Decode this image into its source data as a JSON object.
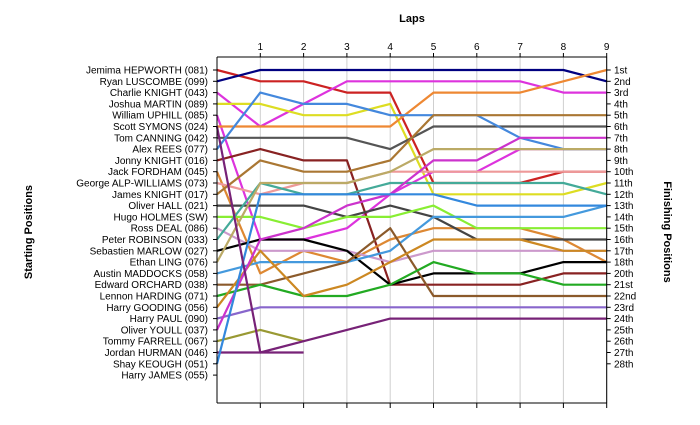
{
  "chart_data": {
    "type": "line",
    "title": "",
    "xlabel": "Laps",
    "ylabel_left": "Starting Positions",
    "ylabel_right": "Finishing Positions",
    "x": [
      0,
      1,
      2,
      3,
      4,
      5,
      6,
      7,
      8,
      9
    ],
    "x_tick_labels": [
      "1",
      "2",
      "3",
      "4",
      "5",
      "6",
      "7",
      "8",
      "9"
    ],
    "ylim": [
      1,
      28
    ],
    "y_inverted": true,
    "grid": true,
    "left_labels": [
      "Jemima HEPWORTH (081)",
      "Ryan LUSCOMBE (099)",
      "Charlie KNIGHT (043)",
      "Joshua MARTIN (089)",
      "William UPHILL (085)",
      "Scott SYMONS (024)",
      "Tom CANNING (042)",
      "Alex REES (077)",
      "Jonny KNIGHT (016)",
      "Jack FORDHAM (045)",
      "George ALP-WILLIAMS (073)",
      "James KNIGHT (017)",
      "Oliver HALL (021)",
      "Hugo HOLMES (SW)",
      "Ross DEAL (086)",
      "Peter ROBINSON (033)",
      "Sebastien MARLOW (027)",
      "Ethan LING (076)",
      "Austin MADDOCKS (058)",
      "Edward ORCHARD (038)",
      "Lennon HARDING (071)",
      "Harry GOODING (056)",
      "Harry PAUL (090)",
      "Oliver YOULL (037)",
      "Tommy FARRELL (067)",
      "Jordan HURMAN (046)",
      "Shay KEOUGH (051)",
      "Harry JAMES (055)"
    ],
    "right_labels": [
      "1st",
      "2nd",
      "3rd",
      "4th",
      "5th",
      "6th",
      "7th",
      "8th",
      "9th",
      "10th",
      "11th",
      "12th",
      "13th",
      "14th",
      "15th",
      "16th",
      "17th",
      "18th",
      "20th",
      "21st",
      "22nd",
      "23rd",
      "24th",
      "25th",
      "26th",
      "27th",
      "28th"
    ],
    "series": [
      {
        "color": "#cc2222",
        "positions": [
          1,
          2,
          2,
          3,
          3,
          11,
          11,
          11,
          10,
          10
        ]
      },
      {
        "color": "#000080",
        "positions": [
          2,
          1,
          1,
          1,
          1,
          1,
          1,
          1,
          1,
          2
        ]
      },
      {
        "color": "#dd33dd",
        "positions": [
          3,
          6,
          4,
          2,
          2,
          2,
          2,
          2,
          3,
          3
        ]
      },
      {
        "color": "#dddd22",
        "positions": [
          4,
          4,
          5,
          5,
          4,
          12,
          12,
          12,
          12,
          11
        ]
      },
      {
        "color": "#dd33dd",
        "positions": [
          5,
          16,
          16,
          15,
          12,
          10,
          10,
          8,
          8,
          8
        ]
      },
      {
        "color": "#ee8833",
        "positions": [
          6,
          6,
          6,
          6,
          6,
          3,
          3,
          3,
          2,
          1
        ]
      },
      {
        "color": "#555555",
        "positions": [
          7,
          7,
          7,
          7,
          8,
          6,
          6,
          6,
          6,
          6
        ]
      },
      {
        "color": "#4488dd",
        "positions": [
          8,
          3,
          4,
          4,
          5,
          5,
          5,
          7,
          8,
          8
        ]
      },
      {
        "color": "#882222",
        "positions": [
          9,
          8,
          9,
          9,
          20,
          20,
          20,
          20,
          19,
          19
        ]
      },
      {
        "color": "#dd8833",
        "positions": [
          10,
          19,
          17,
          18,
          16,
          15,
          15,
          15,
          16,
          18
        ]
      },
      {
        "color": "#ee9999",
        "positions": [
          11,
          12,
          11,
          11,
          10,
          10,
          10,
          10,
          10,
          10
        ]
      },
      {
        "color": "#aa7733",
        "positions": [
          12,
          9,
          10,
          10,
          9,
          5,
          5,
          5,
          5,
          5
        ]
      },
      {
        "color": "#444444",
        "positions": [
          13,
          13,
          13,
          14,
          13,
          14,
          16,
          16,
          16,
          16
        ]
      },
      {
        "color": "#88ee33",
        "positions": [
          14,
          14,
          15,
          14,
          14,
          13,
          15,
          15,
          15,
          15
        ]
      },
      {
        "color": "#cc99cc",
        "positions": [
          15,
          17,
          17,
          17,
          18,
          17,
          17,
          17,
          17,
          17
        ]
      },
      {
        "color": "#44aa99",
        "positions": [
          16,
          11,
          12,
          12,
          11,
          11,
          11,
          11,
          11,
          12
        ]
      },
      {
        "color": "#000000",
        "positions": [
          17,
          16,
          16,
          17,
          20,
          19,
          19,
          19,
          18,
          18
        ]
      },
      {
        "color": "#bbaa66",
        "positions": [
          18,
          11,
          11,
          11,
          10,
          8,
          8,
          8,
          8,
          8
        ]
      },
      {
        "color": "#4499dd",
        "positions": [
          19,
          18,
          18,
          18,
          17,
          14,
          14,
          14,
          14,
          13
        ]
      },
      {
        "color": "#8b5a2b",
        "positions": [
          20,
          20,
          19,
          18,
          15,
          21,
          21,
          21,
          21,
          21
        ]
      },
      {
        "color": "#22aa22",
        "positions": [
          21,
          20,
          21,
          21,
          20,
          18,
          19,
          19,
          20,
          20
        ]
      },
      {
        "color": "#cc8822",
        "positions": [
          22,
          17,
          21,
          20,
          18,
          16,
          16,
          16,
          17,
          17
        ]
      },
      {
        "color": "#8866cc",
        "positions": [
          23,
          22,
          22,
          22,
          22,
          22,
          22,
          22,
          22,
          22
        ]
      },
      {
        "color": "#cc33cc",
        "positions": [
          24,
          16,
          15,
          13,
          12,
          9,
          9,
          7,
          7,
          7
        ]
      },
      {
        "color": "#999933",
        "positions": [
          25,
          24,
          25
        ]
      },
      {
        "color": "#772277",
        "positions": [
          26,
          26,
          25,
          24,
          23,
          23,
          23,
          23,
          23,
          23
        ]
      },
      {
        "color": "#3388dd",
        "positions": [
          27,
          12,
          12,
          12,
          12,
          12,
          13,
          13,
          13,
          13
        ]
      },
      {
        "color": "#772277",
        "positions": [
          6,
          26,
          26
        ]
      }
    ]
  }
}
